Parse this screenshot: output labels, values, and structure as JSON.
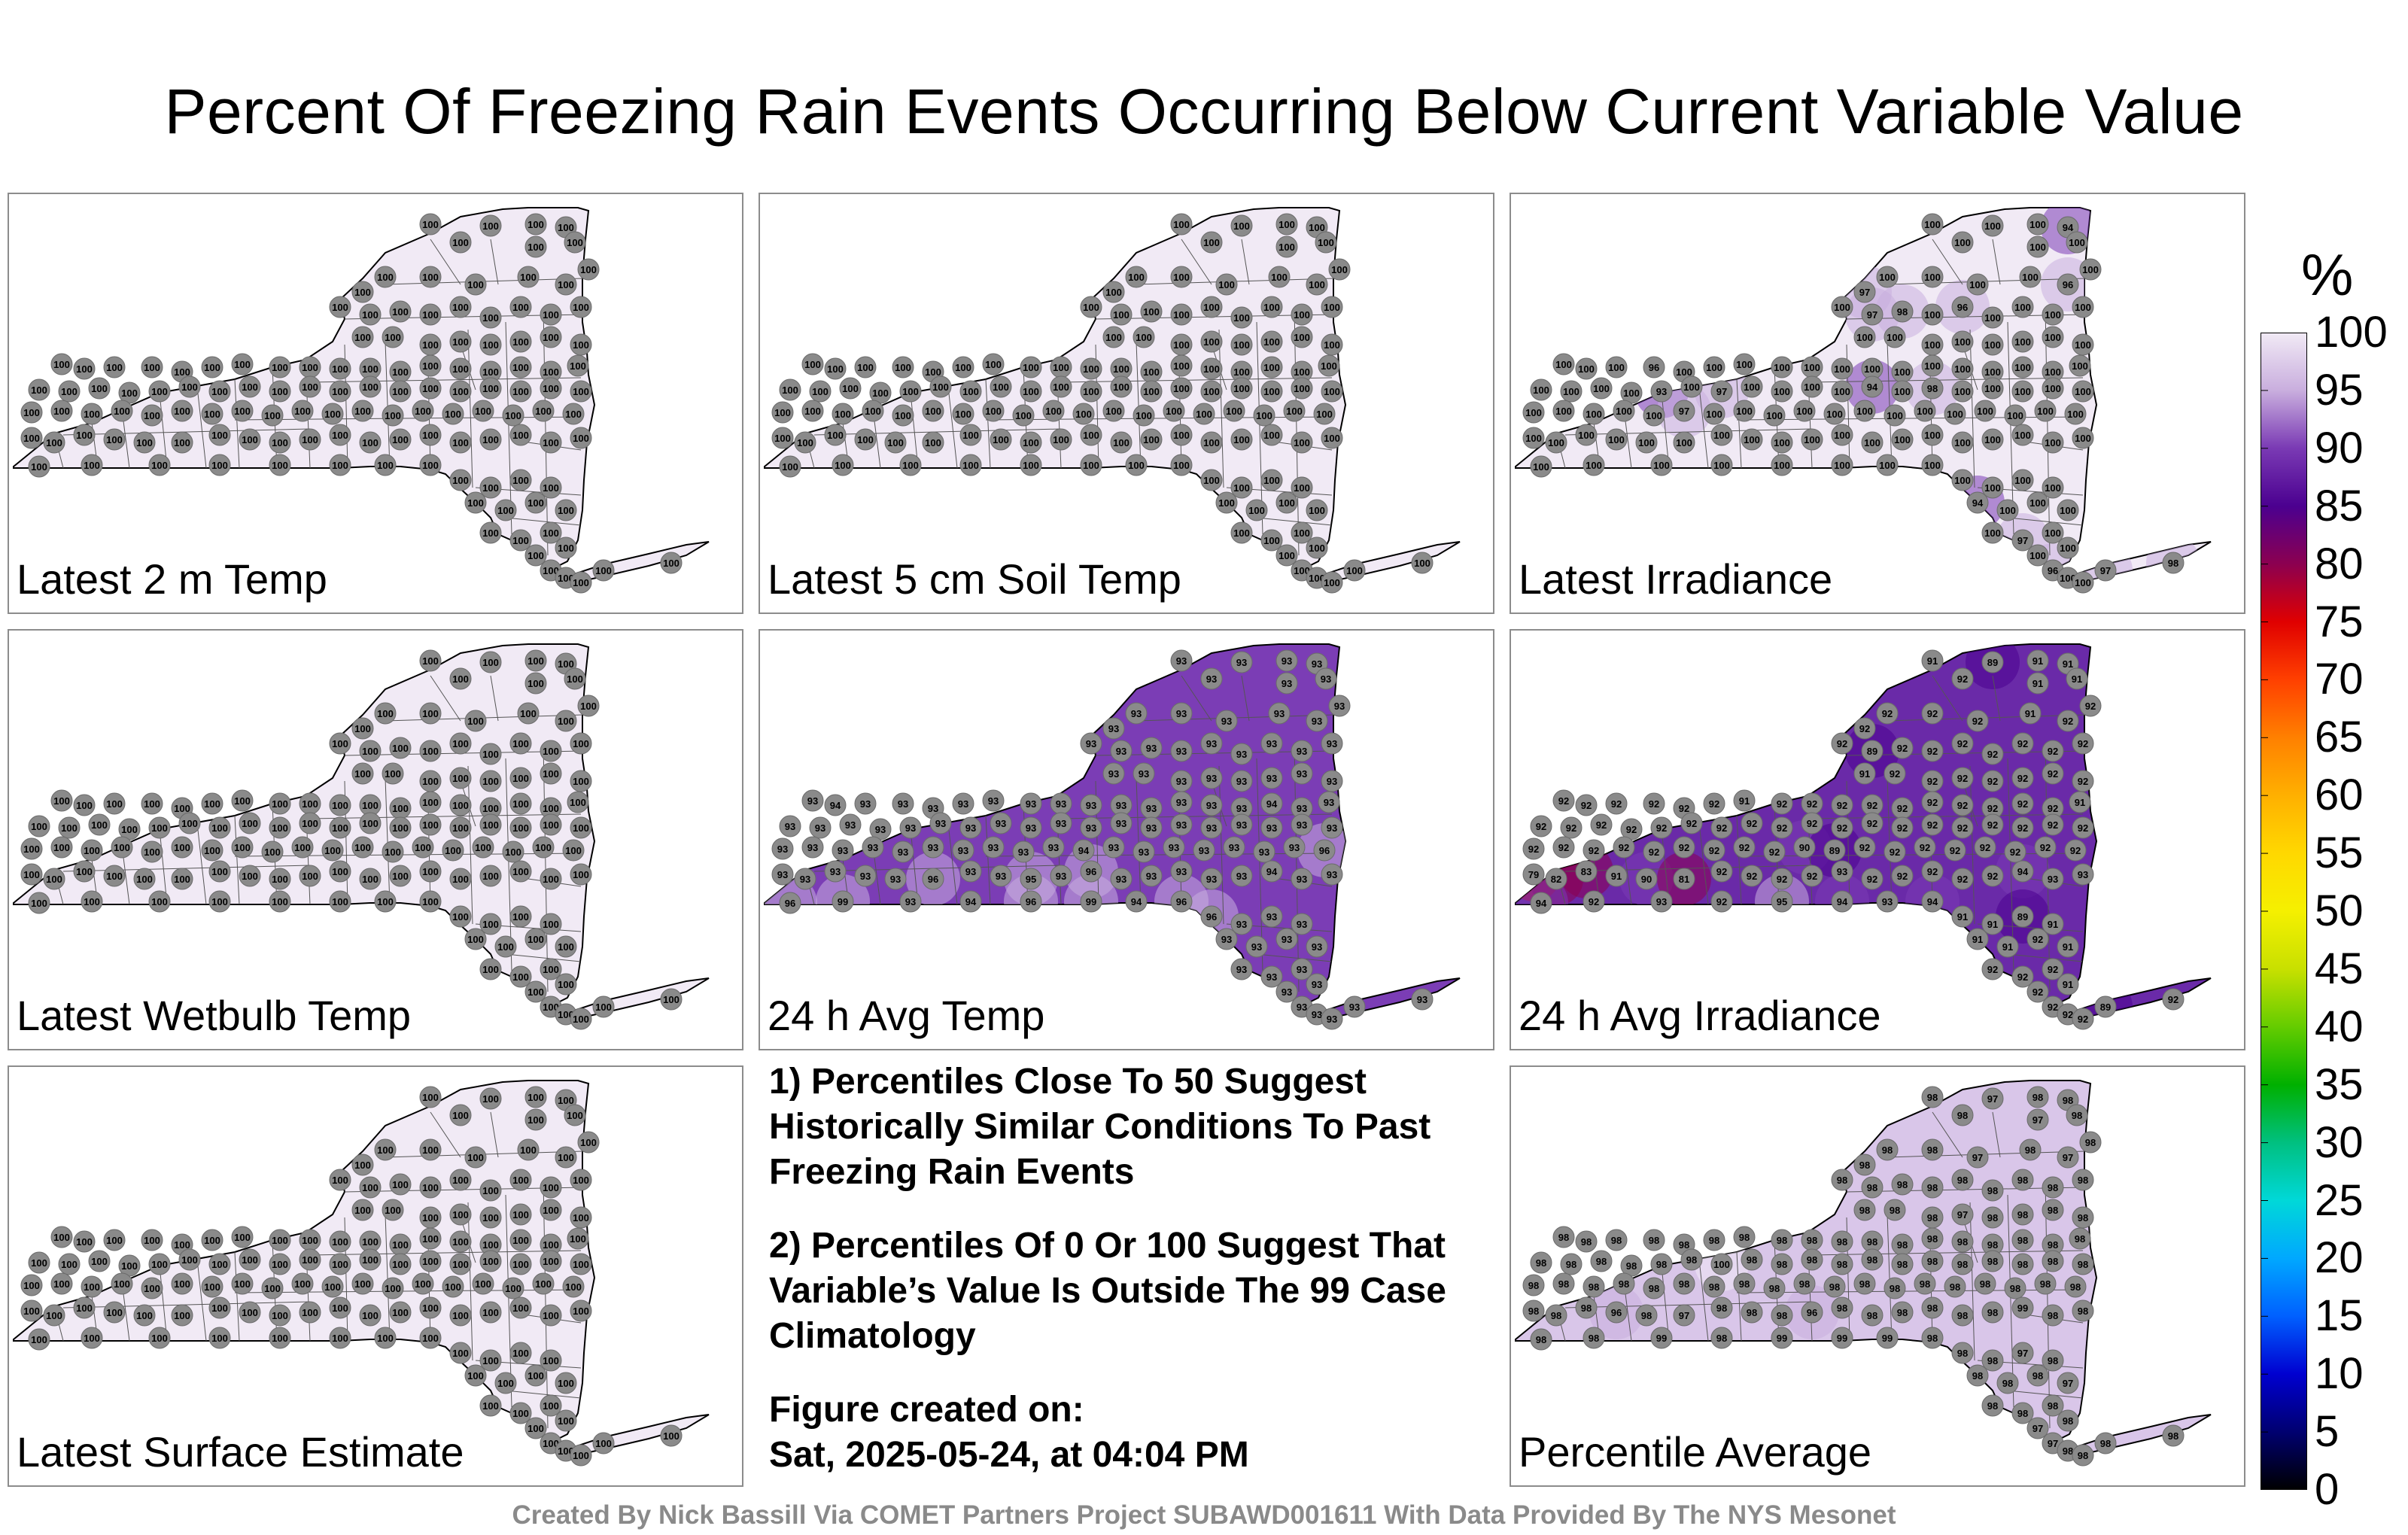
{
  "title": "Percent Of Freezing Rain Events Occurring Below Current Variable Value",
  "footer": "Created By Nick Bassill Via COMET Partners Project SUBAWD001611 With Data Provided By The NYS Mesonet",
  "notes": {
    "note1": "1) Percentiles Close To 50 Suggest Historically Similar Conditions To Past Freezing Rain Events",
    "note2": "2) Percentiles Of 0 Or 100 Suggest That Variable’s Value Is Outside The 99 Case Climatology",
    "created_label": "Figure created on:",
    "created_date": "Sat, 2025-05-24, at 04:04 PM"
  },
  "colorbar": {
    "unit": "%",
    "ticks": [
      100,
      95,
      90,
      85,
      80,
      75,
      70,
      65,
      60,
      55,
      50,
      45,
      40,
      35,
      30,
      25,
      20,
      15,
      10,
      5,
      0
    ],
    "colors": [
      "#f1eaf5",
      "#c9aede",
      "#7a3ab4",
      "#4b0090",
      "#8c0050",
      "#e00000",
      "#ff4000",
      "#ff8000",
      "#ffb000",
      "#ffd800",
      "#f5f000",
      "#c8e000",
      "#64cc00",
      "#00b000",
      "#00c080",
      "#00d8d8",
      "#00a8ff",
      "#0060ff",
      "#0000d0",
      "#000070",
      "#000000"
    ]
  },
  "chart_data": [
    {
      "type": "heatmap",
      "title": "Latest 2 m Temp",
      "uniform_value": 100,
      "station_values": [
        100,
        100,
        100,
        100,
        100,
        100,
        100,
        100,
        100,
        100,
        100,
        100,
        100,
        100,
        100,
        100,
        100,
        100,
        100,
        100,
        100,
        100,
        100,
        100,
        100,
        100,
        100,
        100,
        100,
        100,
        100,
        100,
        100,
        100,
        100,
        100,
        100,
        100,
        100,
        100,
        100,
        100,
        100,
        100,
        100,
        100,
        100,
        100,
        100,
        100,
        100,
        100,
        100,
        100,
        100,
        100,
        100,
        100,
        100,
        100,
        100,
        100,
        100,
        100,
        100,
        100,
        100,
        100,
        100,
        100,
        100,
        100,
        100,
        100,
        100,
        100,
        100,
        100,
        100,
        100,
        100,
        100,
        100,
        100,
        100,
        100,
        100,
        100,
        100,
        100,
        100,
        100,
        100,
        100,
        100,
        100,
        100,
        100,
        100,
        100,
        100,
        100,
        100,
        100,
        100,
        100,
        100,
        100,
        100,
        100,
        100,
        100,
        100,
        100,
        100
      ]
    },
    {
      "type": "heatmap",
      "title": "Latest 5 cm Soil Temp",
      "uniform_value": 100,
      "station_values": [
        100,
        100,
        100,
        100,
        100,
        100,
        100,
        100,
        100,
        100,
        100,
        100,
        100,
        100,
        100,
        100,
        100,
        100,
        100,
        100,
        100,
        100,
        100,
        100,
        100,
        100,
        100,
        100,
        100,
        100,
        100,
        100,
        100,
        100,
        100,
        100,
        100,
        100,
        100,
        100,
        100,
        100,
        100,
        100,
        100,
        100,
        100,
        100,
        100,
        100,
        100,
        100,
        100,
        100,
        100,
        100,
        100,
        100,
        100,
        100,
        100,
        100,
        100,
        100,
        100,
        100,
        100,
        100,
        100,
        100,
        100,
        100,
        100,
        100,
        100,
        100,
        100,
        100,
        100,
        100,
        100,
        100,
        100,
        100,
        100,
        100,
        100,
        100,
        100,
        100,
        100,
        100,
        100,
        100,
        100,
        100,
        100,
        100,
        100,
        100,
        100,
        100,
        100,
        100,
        100,
        100,
        100,
        100,
        100,
        100,
        100,
        100,
        100,
        100,
        100
      ]
    },
    {
      "type": "heatmap",
      "title": "Latest Irradiance",
      "station_values": [
        100,
        100,
        100,
        94,
        100,
        100,
        100,
        100,
        97,
        100,
        100,
        100,
        96,
        100,
        100,
        97,
        98,
        100,
        96,
        100,
        100,
        100,
        100,
        100,
        100,
        100,
        100,
        100,
        100,
        100,
        100,
        100,
        100,
        100,
        96,
        100,
        100,
        100,
        100,
        100,
        100,
        100,
        100,
        100,
        100,
        100,
        100,
        100,
        100,
        100,
        100,
        100,
        100,
        93,
        100,
        97,
        100,
        100,
        100,
        100,
        94,
        100,
        98,
        100,
        100,
        100,
        100,
        100,
        100,
        100,
        100,
        100,
        100,
        97,
        100,
        100,
        100,
        100,
        100,
        100,
        100,
        100,
        100,
        100,
        100,
        100,
        100,
        100,
        100,
        100,
        100,
        100,
        100,
        100,
        100,
        100,
        100,
        100,
        100,
        100,
        100,
        100,
        100,
        100,
        100,
        100,
        100,
        100,
        100,
        100,
        100,
        100,
        100,
        100,
        100
      ]
    },
    {
      "type": "heatmap",
      "title": "Latest Wetbulb Temp",
      "uniform_value": 100,
      "station_values": [
        100,
        100,
        100,
        100,
        100,
        100,
        100,
        100,
        100,
        100,
        100,
        100,
        100,
        100,
        100,
        100,
        100,
        100,
        100,
        100,
        100,
        100,
        100,
        100,
        100,
        100,
        100,
        100,
        100,
        100,
        100,
        100,
        100,
        100,
        100,
        100,
        100,
        100,
        100,
        100,
        100,
        100,
        100,
        100,
        100,
        100,
        100,
        100,
        100,
        100,
        100,
        100,
        100,
        100,
        100,
        100,
        100,
        100,
        100,
        100,
        100,
        100,
        100,
        100,
        100,
        100,
        100,
        100,
        100,
        100,
        100,
        100,
        100,
        100,
        100,
        100,
        100,
        100,
        100,
        100,
        100,
        100,
        100,
        100,
        100,
        100,
        100,
        100,
        100,
        100,
        100,
        100,
        100,
        100,
        100,
        100,
        100,
        100,
        100,
        100,
        100,
        100,
        100,
        100,
        100,
        100,
        100,
        100,
        100,
        100,
        100,
        100,
        100,
        100,
        100
      ]
    },
    {
      "type": "heatmap",
      "title": "24 h Avg Temp",
      "station_values": [
        93,
        93,
        93,
        93,
        93,
        93,
        93,
        93,
        93,
        93,
        93,
        93,
        93,
        93,
        93,
        93,
        93,
        93,
        93,
        93,
        93,
        93,
        93,
        93,
        93,
        93,
        93,
        93,
        93,
        93,
        93,
        93,
        94,
        93,
        93,
        93,
        93,
        93,
        93,
        93,
        93,
        93,
        93,
        93,
        93,
        93,
        94,
        93,
        93,
        93,
        93,
        93,
        93,
        93,
        93,
        93,
        93,
        93,
        93,
        93,
        93,
        93,
        93,
        93,
        93,
        93,
        93,
        93,
        93,
        93,
        93,
        93,
        93,
        93,
        93,
        93,
        93,
        93,
        94,
        93,
        93,
        93,
        93,
        93,
        93,
        93,
        96,
        93,
        93,
        93,
        93,
        93,
        96,
        93,
        93,
        95,
        93,
        96,
        93,
        93,
        93,
        93,
        93,
        94,
        93,
        93,
        96,
        99,
        93,
        94,
        96,
        99,
        94,
        96,
        96
      ]
    },
    {
      "type": "heatmap",
      "title": "24 h Avg Irradiance",
      "station_values": [
        91,
        89,
        91,
        91,
        91,
        92,
        91,
        92,
        92,
        92,
        92,
        91,
        92,
        92,
        92,
        89,
        92,
        92,
        92,
        92,
        92,
        92,
        92,
        91,
        92,
        92,
        92,
        92,
        92,
        92,
        92,
        92,
        92,
        92,
        92,
        92,
        92,
        91,
        92,
        92,
        92,
        92,
        92,
        92,
        92,
        92,
        92,
        92,
        91,
        92,
        92,
        92,
        92,
        92,
        92,
        92,
        92,
        92,
        92,
        92,
        92,
        92,
        92,
        92,
        92,
        92,
        92,
        92,
        92,
        92,
        92,
        92,
        92,
        92,
        92,
        92,
        92,
        90,
        89,
        92,
        92,
        92,
        92,
        92,
        92,
        92,
        92,
        79,
        82,
        83,
        91,
        90,
        81,
        92,
        92,
        92,
        92,
        93,
        92,
        92,
        92,
        92,
        92,
        94,
        93,
        93,
        94,
        92,
        93,
        92,
        95,
        94,
        93,
        94,
        91
      ]
    },
    {
      "type": "heatmap",
      "title": "Latest Surface Estimate",
      "uniform_value": 100,
      "station_values": [
        100,
        100,
        100,
        100,
        100,
        100,
        100,
        100,
        100,
        100,
        100,
        100,
        100,
        100,
        100,
        100,
        100,
        100,
        100,
        100,
        100,
        100,
        100,
        100,
        100,
        100,
        100,
        100,
        100,
        100,
        100,
        100,
        100,
        100,
        100,
        100,
        100,
        100,
        100,
        100,
        100,
        100,
        100,
        100,
        100,
        100,
        100,
        100,
        100,
        100,
        100,
        100,
        100,
        100,
        100,
        100,
        100,
        100,
        100,
        100,
        100,
        100,
        100,
        100,
        100,
        100,
        100,
        100,
        100,
        100,
        100,
        100,
        100,
        100,
        100,
        100,
        100,
        100,
        100,
        100,
        100,
        100,
        100,
        100,
        100,
        100,
        100,
        100,
        100,
        100,
        100,
        100,
        100,
        100,
        100,
        100,
        100,
        100,
        100,
        100,
        100,
        100,
        100,
        100,
        100,
        100,
        100,
        100,
        100,
        100,
        100,
        100,
        100,
        100,
        100
      ]
    },
    {
      "type": "heatmap",
      "title": "Percentile Average",
      "station_values": [
        98,
        97,
        98,
        98,
        98,
        98,
        97,
        98,
        98,
        98,
        97,
        98,
        97,
        98,
        98,
        98,
        98,
        98,
        98,
        98,
        98,
        98,
        98,
        98,
        98,
        98,
        97,
        98,
        98,
        98,
        98,
        98,
        98,
        98,
        98,
        98,
        98,
        98,
        98,
        98,
        98,
        98,
        98,
        98,
        98,
        98,
        98,
        98,
        98,
        98,
        98,
        98,
        98,
        98,
        98,
        100,
        98,
        98,
        98,
        98,
        98,
        98,
        98,
        98,
        98,
        98,
        98,
        98,
        98,
        98,
        98,
        98,
        98,
        98,
        98,
        98,
        98,
        98,
        98,
        98,
        98,
        98,
        98,
        98,
        98,
        98,
        98,
        98,
        98,
        98,
        96,
        98,
        97,
        98,
        98,
        98,
        96,
        98,
        98,
        98,
        98,
        98,
        98,
        99,
        98,
        98,
        98,
        98,
        99,
        98,
        99,
        99,
        99,
        98,
        98
      ]
    }
  ]
}
